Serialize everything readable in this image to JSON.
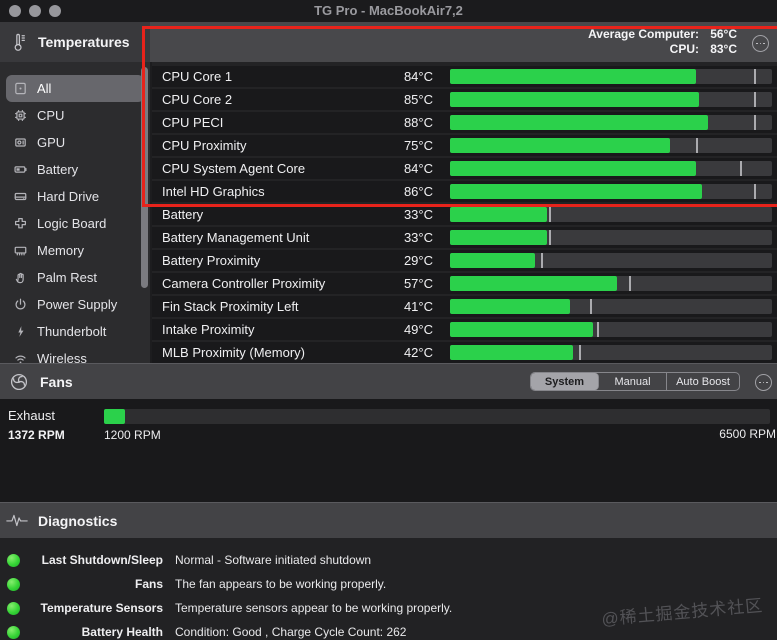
{
  "window": {
    "title": "TG Pro - MacBookAir7,2"
  },
  "temperatures": {
    "title": "Temperatures",
    "summary": [
      {
        "label": "Average Computer:",
        "value": "56°C"
      },
      {
        "label": "CPU:",
        "value": "83°C"
      }
    ],
    "sidebar": [
      {
        "label": "All",
        "icon": "list-badge-icon",
        "selected": true
      },
      {
        "label": "CPU",
        "icon": "cpu-chip-icon",
        "selected": false
      },
      {
        "label": "GPU",
        "icon": "gpu-chip-icon",
        "selected": false
      },
      {
        "label": "Battery",
        "icon": "battery-icon",
        "selected": false
      },
      {
        "label": "Hard Drive",
        "icon": "hard-drive-icon",
        "selected": false
      },
      {
        "label": "Logic Board",
        "icon": "logic-board-icon",
        "selected": false
      },
      {
        "label": "Memory",
        "icon": "memory-icon",
        "selected": false
      },
      {
        "label": "Palm Rest",
        "icon": "palm-rest-hand-icon",
        "selected": false
      },
      {
        "label": "Power Supply",
        "icon": "power-icon",
        "selected": false
      },
      {
        "label": "Thunderbolt",
        "icon": "thunderbolt-icon",
        "selected": false
      },
      {
        "label": "Wireless",
        "icon": "wifi-icon",
        "selected": false
      }
    ],
    "scale": {
      "min": 0,
      "max": 110
    },
    "rows": [
      {
        "label": "CPU Core 1",
        "display": "84°C",
        "value": 84,
        "max": 104
      },
      {
        "label": "CPU Core 2",
        "display": "85°C",
        "value": 85,
        "max": 104
      },
      {
        "label": "CPU PECI",
        "display": "88°C",
        "value": 88,
        "max": 104
      },
      {
        "label": "CPU Proximity",
        "display": "75°C",
        "value": 75,
        "max": 84
      },
      {
        "label": "CPU System Agent Core",
        "display": "84°C",
        "value": 84,
        "max": 99
      },
      {
        "label": "Intel HD Graphics",
        "display": "86°C",
        "value": 86,
        "max": 104
      },
      {
        "label": "Battery",
        "display": "33°C",
        "value": 33,
        "max": 34
      },
      {
        "label": "Battery Management Unit",
        "display": "33°C",
        "value": 33,
        "max": 34
      },
      {
        "label": "Battery Proximity",
        "display": "29°C",
        "value": 29,
        "max": 31
      },
      {
        "label": "Camera Controller Proximity",
        "display": "57°C",
        "value": 57,
        "max": 61
      },
      {
        "label": "Fin Stack Proximity Left",
        "display": "41°C",
        "value": 41,
        "max": 48
      },
      {
        "label": "Intake Proximity",
        "display": "49°C",
        "value": 49,
        "max": 50
      },
      {
        "label": "MLB Proximity (Memory)",
        "display": "42°C",
        "value": 42,
        "max": 44
      }
    ]
  },
  "fans": {
    "title": "Fans",
    "modes": [
      {
        "label": "System",
        "selected": true
      },
      {
        "label": "Manual",
        "selected": false
      },
      {
        "label": "Auto Boost",
        "selected": false
      }
    ],
    "fan": {
      "name": "Exhaust",
      "current_label": "1372 RPM",
      "min_label": "1200 RPM",
      "max_label": "6500 RPM",
      "value": 1372,
      "min": 1200,
      "max": 6500
    }
  },
  "diagnostics": {
    "title": "Diagnostics",
    "rows": [
      {
        "label": "Last Shutdown/Sleep",
        "value": "Normal - Software initiated shutdown",
        "status": "ok"
      },
      {
        "label": "Fans",
        "value": "The fan appears to be working properly.",
        "status": "ok"
      },
      {
        "label": "Temperature Sensors",
        "value": "Temperature sensors appear to be working properly.",
        "status": "ok"
      },
      {
        "label": "Battery Health",
        "value": "Condition: Good , Charge Cycle Count: 262",
        "status": "ok"
      }
    ]
  },
  "watermark": "@稀土掘金技术社区",
  "colors": {
    "bar_green": "#2bd14b",
    "highlight_red": "#e8231b",
    "status_green": "#35d435"
  }
}
